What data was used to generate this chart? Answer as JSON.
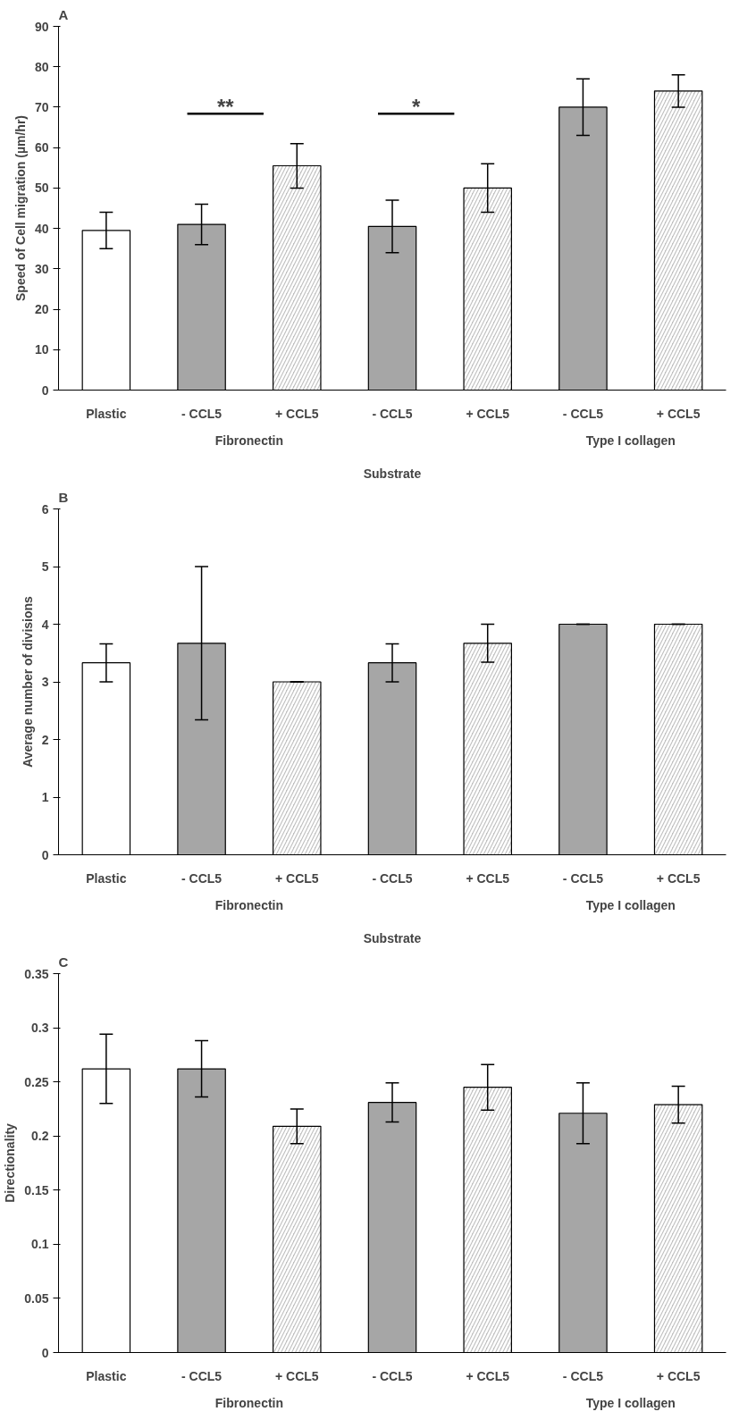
{
  "chart_data": [
    {
      "type": "bar",
      "title": "A",
      "ylabel": "Speed of Cell migration (µm/hr)",
      "xlabel": "Substrate",
      "categories": [
        "Plastic",
        "- CCL5",
        "+ CCL5",
        "- CCL5",
        "+ CCL5",
        "- CCL5",
        "+ CCL5"
      ],
      "series": [
        {
          "color": "#ffffff",
          "values": [
            39.5,
            null,
            null,
            null,
            null,
            null,
            null
          ],
          "errors": [
            4.5,
            null,
            null,
            null,
            null,
            null,
            null
          ]
        },
        {
          "color": "#a6a6a6",
          "values": [
            null,
            41,
            null,
            40.5,
            null,
            70,
            null
          ],
          "errors": [
            null,
            5,
            null,
            6.5,
            null,
            7,
            null
          ]
        },
        {
          "color": "#bfbfbf",
          "values": [
            null,
            null,
            55.5,
            null,
            50,
            null,
            74
          ],
          "errors": [
            null,
            null,
            5.5,
            null,
            6,
            null,
            4
          ]
        }
      ],
      "ylim": [
        0,
        90
      ],
      "yticks": [
        0,
        10,
        20,
        30,
        40,
        50,
        60,
        70,
        80,
        90
      ],
      "annotations": [
        "**",
        "*",
        "Fibronectin",
        "Type I collagen"
      ]
    },
    {
      "type": "bar",
      "title": "B",
      "ylabel": "Average number of divisions",
      "xlabel": "Substrate",
      "categories": [
        "Plastic",
        "- CCL5",
        "+ CCL5",
        "- CCL5",
        "+ CCL5",
        "- CCL5",
        "+ CCL5"
      ],
      "series": [
        {
          "color": "#ffffff",
          "values": [
            3.33,
            null,
            null,
            null,
            null,
            null,
            null
          ],
          "errors": [
            0.33,
            null,
            null,
            null,
            null,
            null,
            null
          ]
        },
        {
          "color": "#a6a6a6",
          "values": [
            null,
            3.67,
            null,
            3.33,
            null,
            4.0,
            null
          ],
          "errors": [
            null,
            1.33,
            null,
            0.33,
            null,
            0,
            null
          ]
        },
        {
          "color": "#bfbfbf",
          "values": [
            null,
            null,
            3.0,
            null,
            3.67,
            null,
            4.0
          ],
          "errors": [
            null,
            null,
            0,
            null,
            0.33,
            null,
            0
          ]
        }
      ],
      "ylim": [
        0,
        6
      ],
      "yticks": [
        0,
        1,
        2,
        3,
        4,
        5,
        6
      ],
      "annotations": [
        "Fibronectin",
        "Type I collagen"
      ]
    },
    {
      "type": "bar",
      "title": "C",
      "ylabel": "Directionality",
      "categories": [
        "Plastic",
        "- CCL5",
        "+ CCL5",
        "- CCL5",
        "+ CCL5",
        "- CCL5",
        "+ CCL5"
      ],
      "series": [
        {
          "color": "#ffffff",
          "values": [
            0.262,
            null,
            null,
            null,
            null,
            null,
            null
          ],
          "errors": [
            0.032,
            null,
            null,
            null,
            null,
            null,
            null
          ]
        },
        {
          "color": "#a6a6a6",
          "values": [
            null,
            0.262,
            null,
            0.231,
            null,
            0.221,
            null
          ],
          "errors": [
            null,
            0.026,
            null,
            0.018,
            null,
            0.028,
            null
          ]
        },
        {
          "color": "#bfbfbf",
          "values": [
            null,
            null,
            0.209,
            null,
            0.245,
            null,
            0.229
          ],
          "errors": [
            null,
            null,
            0.016,
            null,
            0.021,
            null,
            0.017
          ]
        }
      ],
      "ylim": [
        0,
        0.35
      ],
      "yticks": [
        0,
        0.05,
        0.1,
        0.15,
        0.2,
        0.25,
        0.3,
        0.35
      ],
      "annotations": [
        "Fibronectin",
        "Type I collagen"
      ]
    }
  ]
}
